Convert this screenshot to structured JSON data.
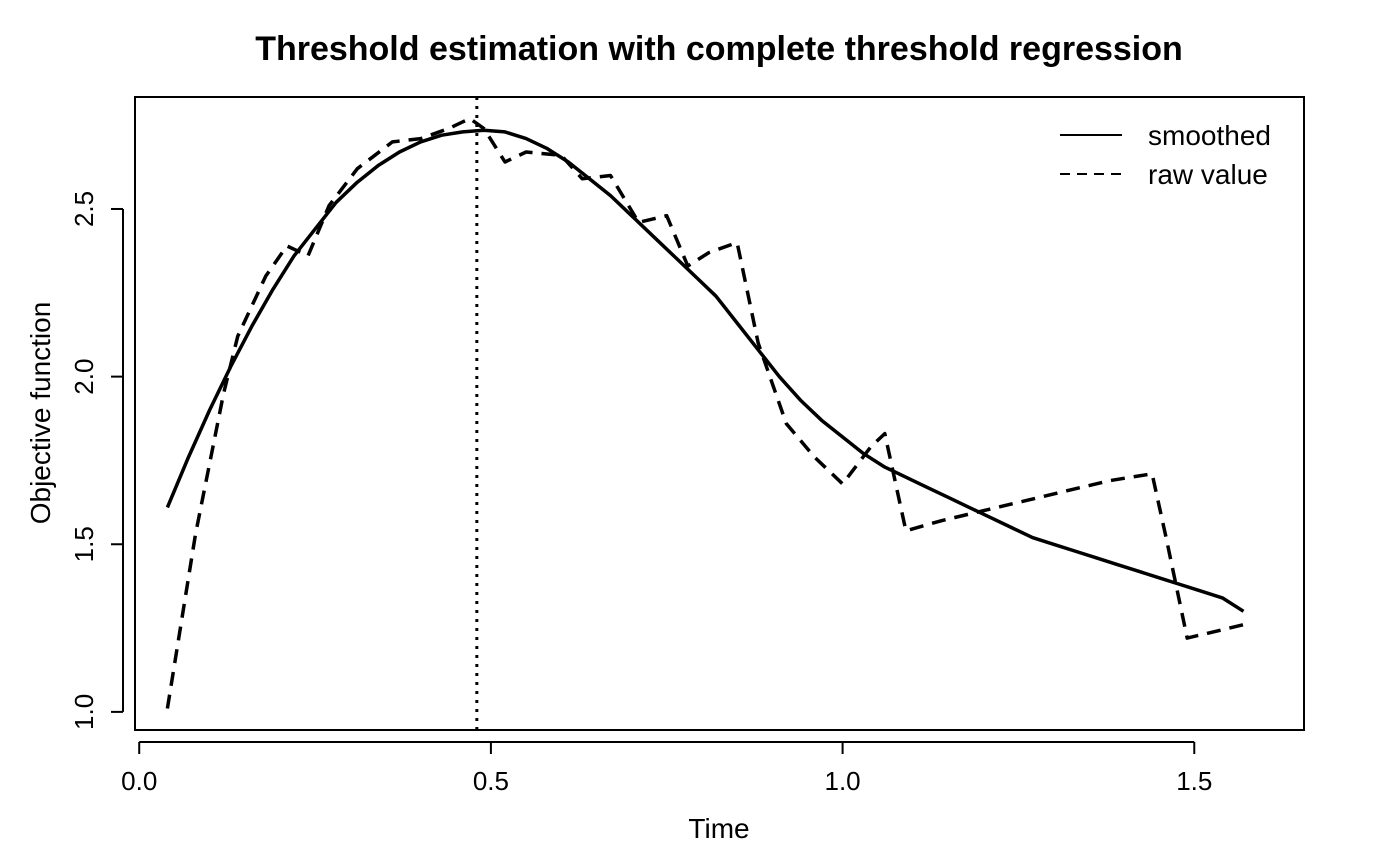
{
  "chart_data": {
    "type": "line",
    "title": "Threshold estimation with complete threshold regression",
    "xlabel": "Time",
    "ylabel": "Objective function",
    "xlim": [
      -0.006,
      1.656
    ],
    "ylim": [
      0.946,
      2.834
    ],
    "x_ticks": [
      0.0,
      0.5,
      1.0,
      1.5
    ],
    "x_tick_labels": [
      "0.0",
      "0.5",
      "1.0",
      "1.5"
    ],
    "y_ticks": [
      1.0,
      1.5,
      2.0,
      2.5
    ],
    "y_tick_labels": [
      "1.0",
      "1.5",
      "2.0",
      "2.5"
    ],
    "threshold_x": 0.48,
    "legend": {
      "position": "top-right"
    },
    "series": [
      {
        "name": "smoothed",
        "style": "solid",
        "x": [
          0.04,
          0.07,
          0.1,
          0.13,
          0.16,
          0.19,
          0.22,
          0.25,
          0.28,
          0.31,
          0.34,
          0.37,
          0.4,
          0.43,
          0.46,
          0.49,
          0.52,
          0.55,
          0.58,
          0.61,
          0.64,
          0.67,
          0.7,
          0.73,
          0.76,
          0.79,
          0.82,
          0.85,
          0.88,
          0.91,
          0.94,
          0.97,
          1.0,
          1.03,
          1.06,
          1.09,
          1.12,
          1.15,
          1.18,
          1.21,
          1.24,
          1.27,
          1.3,
          1.33,
          1.36,
          1.39,
          1.42,
          1.45,
          1.48,
          1.51,
          1.54,
          1.57
        ],
        "y": [
          1.61,
          1.76,
          1.9,
          2.03,
          2.15,
          2.26,
          2.36,
          2.44,
          2.52,
          2.58,
          2.63,
          2.67,
          2.7,
          2.72,
          2.73,
          2.735,
          2.73,
          2.71,
          2.68,
          2.64,
          2.59,
          2.54,
          2.48,
          2.42,
          2.36,
          2.3,
          2.24,
          2.16,
          2.08,
          2.0,
          1.93,
          1.87,
          1.82,
          1.77,
          1.73,
          1.7,
          1.67,
          1.64,
          1.61,
          1.58,
          1.55,
          1.52,
          1.5,
          1.48,
          1.46,
          1.44,
          1.42,
          1.4,
          1.38,
          1.36,
          1.34,
          1.3
        ]
      },
      {
        "name": "raw value",
        "style": "dashed",
        "x": [
          0.04,
          0.08,
          0.12,
          0.14,
          0.18,
          0.21,
          0.24,
          0.27,
          0.31,
          0.36,
          0.4,
          0.44,
          0.47,
          0.49,
          0.52,
          0.55,
          0.6,
          0.63,
          0.67,
          0.71,
          0.75,
          0.78,
          0.81,
          0.85,
          0.88,
          0.92,
          0.96,
          1.0,
          1.04,
          1.06,
          1.09,
          1.14,
          1.2,
          1.26,
          1.32,
          1.38,
          1.44,
          1.46,
          1.49,
          1.53,
          1.57
        ],
        "y": [
          1.01,
          1.53,
          1.95,
          2.12,
          2.3,
          2.39,
          2.36,
          2.51,
          2.62,
          2.7,
          2.71,
          2.74,
          2.77,
          2.74,
          2.64,
          2.67,
          2.66,
          2.59,
          2.6,
          2.46,
          2.48,
          2.33,
          2.37,
          2.4,
          2.1,
          1.86,
          1.76,
          1.68,
          1.79,
          1.83,
          1.54,
          1.57,
          1.6,
          1.63,
          1.66,
          1.69,
          1.71,
          1.52,
          1.22,
          1.24,
          1.26
        ]
      }
    ]
  }
}
